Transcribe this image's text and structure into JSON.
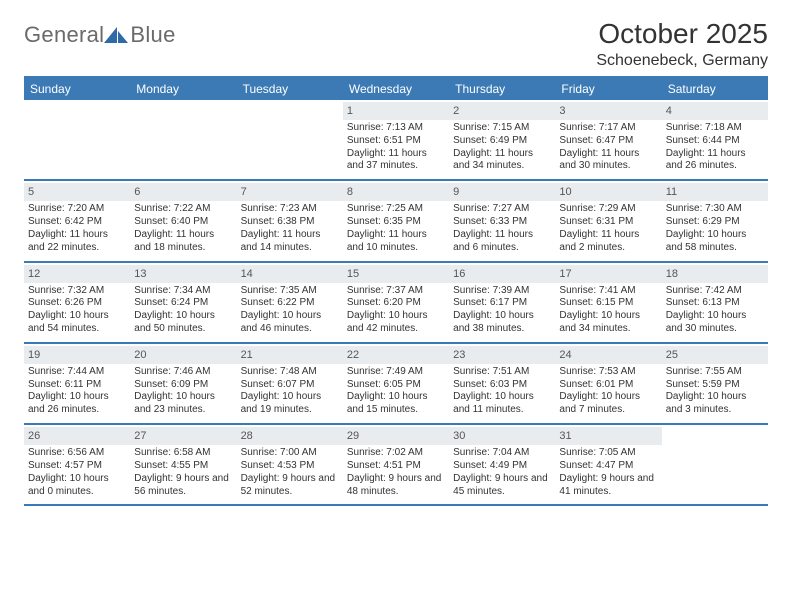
{
  "brand": {
    "text_general": "General",
    "text_blue": "Blue",
    "logo_fill": "#2f6aa8"
  },
  "title": "October 2025",
  "location": "Schoenebeck, Germany",
  "colors": {
    "header_bg": "#3b7ab5",
    "header_text": "#ffffff",
    "daynum_bg": "#e9ecef",
    "border": "#3b7ab5",
    "text": "#333333",
    "background": "#ffffff"
  },
  "typography": {
    "title_fontsize": 28,
    "location_fontsize": 16,
    "dayheader_fontsize": 12,
    "body_fontsize": 10
  },
  "days_of_week": [
    "Sunday",
    "Monday",
    "Tuesday",
    "Wednesday",
    "Thursday",
    "Friday",
    "Saturday"
  ],
  "weeks": [
    [
      null,
      null,
      null,
      {
        "n": "1",
        "sunrise": "7:13 AM",
        "sunset": "6:51 PM",
        "daylight": "11 hours and 37 minutes."
      },
      {
        "n": "2",
        "sunrise": "7:15 AM",
        "sunset": "6:49 PM",
        "daylight": "11 hours and 34 minutes."
      },
      {
        "n": "3",
        "sunrise": "7:17 AM",
        "sunset": "6:47 PM",
        "daylight": "11 hours and 30 minutes."
      },
      {
        "n": "4",
        "sunrise": "7:18 AM",
        "sunset": "6:44 PM",
        "daylight": "11 hours and 26 minutes."
      }
    ],
    [
      {
        "n": "5",
        "sunrise": "7:20 AM",
        "sunset": "6:42 PM",
        "daylight": "11 hours and 22 minutes."
      },
      {
        "n": "6",
        "sunrise": "7:22 AM",
        "sunset": "6:40 PM",
        "daylight": "11 hours and 18 minutes."
      },
      {
        "n": "7",
        "sunrise": "7:23 AM",
        "sunset": "6:38 PM",
        "daylight": "11 hours and 14 minutes."
      },
      {
        "n": "8",
        "sunrise": "7:25 AM",
        "sunset": "6:35 PM",
        "daylight": "11 hours and 10 minutes."
      },
      {
        "n": "9",
        "sunrise": "7:27 AM",
        "sunset": "6:33 PM",
        "daylight": "11 hours and 6 minutes."
      },
      {
        "n": "10",
        "sunrise": "7:29 AM",
        "sunset": "6:31 PM",
        "daylight": "11 hours and 2 minutes."
      },
      {
        "n": "11",
        "sunrise": "7:30 AM",
        "sunset": "6:29 PM",
        "daylight": "10 hours and 58 minutes."
      }
    ],
    [
      {
        "n": "12",
        "sunrise": "7:32 AM",
        "sunset": "6:26 PM",
        "daylight": "10 hours and 54 minutes."
      },
      {
        "n": "13",
        "sunrise": "7:34 AM",
        "sunset": "6:24 PM",
        "daylight": "10 hours and 50 minutes."
      },
      {
        "n": "14",
        "sunrise": "7:35 AM",
        "sunset": "6:22 PM",
        "daylight": "10 hours and 46 minutes."
      },
      {
        "n": "15",
        "sunrise": "7:37 AM",
        "sunset": "6:20 PM",
        "daylight": "10 hours and 42 minutes."
      },
      {
        "n": "16",
        "sunrise": "7:39 AM",
        "sunset": "6:17 PM",
        "daylight": "10 hours and 38 minutes."
      },
      {
        "n": "17",
        "sunrise": "7:41 AM",
        "sunset": "6:15 PM",
        "daylight": "10 hours and 34 minutes."
      },
      {
        "n": "18",
        "sunrise": "7:42 AM",
        "sunset": "6:13 PM",
        "daylight": "10 hours and 30 minutes."
      }
    ],
    [
      {
        "n": "19",
        "sunrise": "7:44 AM",
        "sunset": "6:11 PM",
        "daylight": "10 hours and 26 minutes."
      },
      {
        "n": "20",
        "sunrise": "7:46 AM",
        "sunset": "6:09 PM",
        "daylight": "10 hours and 23 minutes."
      },
      {
        "n": "21",
        "sunrise": "7:48 AM",
        "sunset": "6:07 PM",
        "daylight": "10 hours and 19 minutes."
      },
      {
        "n": "22",
        "sunrise": "7:49 AM",
        "sunset": "6:05 PM",
        "daylight": "10 hours and 15 minutes."
      },
      {
        "n": "23",
        "sunrise": "7:51 AM",
        "sunset": "6:03 PM",
        "daylight": "10 hours and 11 minutes."
      },
      {
        "n": "24",
        "sunrise": "7:53 AM",
        "sunset": "6:01 PM",
        "daylight": "10 hours and 7 minutes."
      },
      {
        "n": "25",
        "sunrise": "7:55 AM",
        "sunset": "5:59 PM",
        "daylight": "10 hours and 3 minutes."
      }
    ],
    [
      {
        "n": "26",
        "sunrise": "6:56 AM",
        "sunset": "4:57 PM",
        "daylight": "10 hours and 0 minutes."
      },
      {
        "n": "27",
        "sunrise": "6:58 AM",
        "sunset": "4:55 PM",
        "daylight": "9 hours and 56 minutes."
      },
      {
        "n": "28",
        "sunrise": "7:00 AM",
        "sunset": "4:53 PM",
        "daylight": "9 hours and 52 minutes."
      },
      {
        "n": "29",
        "sunrise": "7:02 AM",
        "sunset": "4:51 PM",
        "daylight": "9 hours and 48 minutes."
      },
      {
        "n": "30",
        "sunrise": "7:04 AM",
        "sunset": "4:49 PM",
        "daylight": "9 hours and 45 minutes."
      },
      {
        "n": "31",
        "sunrise": "7:05 AM",
        "sunset": "4:47 PM",
        "daylight": "9 hours and 41 minutes."
      },
      null
    ]
  ],
  "labels": {
    "sunrise_prefix": "Sunrise: ",
    "sunset_prefix": "Sunset: ",
    "daylight_prefix": "Daylight: "
  }
}
